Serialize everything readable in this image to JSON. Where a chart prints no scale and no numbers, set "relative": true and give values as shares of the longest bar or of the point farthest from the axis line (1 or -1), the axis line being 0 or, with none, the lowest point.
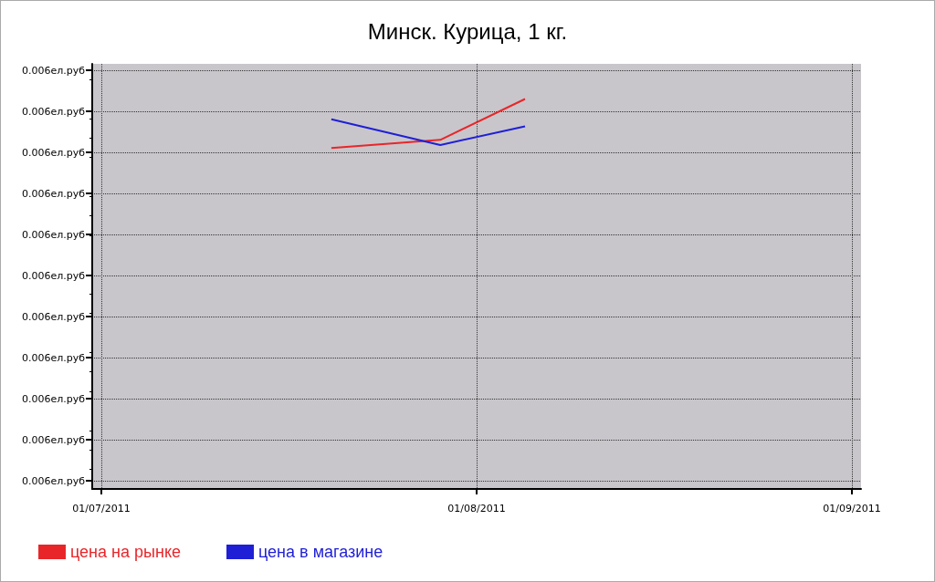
{
  "chart_data": {
    "type": "line",
    "title": "Минск. Курица, 1 кг.",
    "relative": true,
    "x": [
      "2011-07-20",
      "2011-07-29",
      "2011-08-05"
    ],
    "xlim": [
      "2011-06-30T06:00",
      "2011-09-01T18:00"
    ],
    "xticks": [
      {
        "value": "2011-07-01",
        "label": "01/07/2011"
      },
      {
        "value": "2011-08-01",
        "label": "01/08/2011"
      },
      {
        "value": "2011-09-01",
        "label": "01/09/2011"
      }
    ],
    "annotations": [
      "0.006ел.руб",
      "0.006ел.руб",
      "0.006ел.руб",
      "0.006ел.руб",
      "0.006ел.руб",
      "0.006ел.руб",
      "0.006ел.руб",
      "0.006ел.руб",
      "0.006ел.руб",
      "0.006ел.руб",
      "0.006ел.руб"
    ],
    "series": [
      {
        "name": "цена на рынке",
        "color": "#e8262a",
        "values": [
          0.874,
          0.895,
          1
        ]
      },
      {
        "name": "цена в магазине",
        "color": "#1f1fd6",
        "values": [
          0.948,
          0.882,
          0.93
        ]
      }
    ],
    "grid": true,
    "legend": "bottom left",
    "marker": "none",
    "line_style": "solid"
  }
}
